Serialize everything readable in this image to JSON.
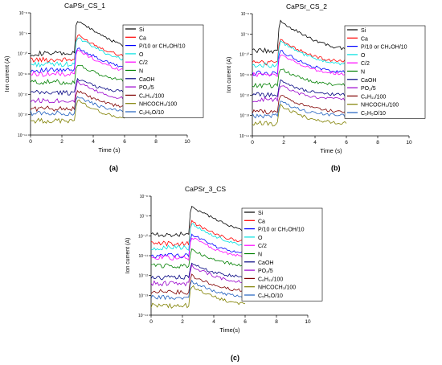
{
  "chart_data": [
    {
      "type": "line",
      "panel_label": "(a)",
      "title": "CaPSr_CS_1",
      "xlabel": "Time (s)",
      "ylabel": "Ion current (A)",
      "xlim": [
        0,
        10
      ],
      "ylim_exp": [
        -14,
        -8
      ],
      "x_ticks": [
        "0",
        "2",
        "4",
        "6",
        "8",
        "10"
      ],
      "y_ticks": [
        "10⁻¹⁴",
        "10⁻¹³",
        "10⁻¹²",
        "10⁻¹¹",
        "10⁻¹⁰",
        "10⁻⁹",
        "10⁻⁸"
      ],
      "legend_placement": "right",
      "peak_time": 3.0,
      "series": [
        {
          "name": "Si",
          "color": "#000000",
          "base": 1e-10,
          "peak": 4e-09
        },
        {
          "name": "Ca",
          "color": "#ff0000",
          "base": 5e-11,
          "peak": 8e-10
        },
        {
          "name": "P/10 or CH₂OH/10",
          "color": "#0000ff",
          "base": 1.5e-11,
          "peak": 2e-10
        },
        {
          "name": "O",
          "color": "#00e0e0",
          "base": 3e-11,
          "peak": 6e-10
        },
        {
          "name": "C/2",
          "color": "#ff00ff",
          "base": 1e-11,
          "peak": 1.5e-10
        },
        {
          "name": "N",
          "color": "#008000",
          "base": 4e-12,
          "peak": 3e-11
        },
        {
          "name": "CaOH",
          "color": "#000080",
          "base": 1.2e-12,
          "peak": 6e-12
        },
        {
          "name": "PO₂/5",
          "color": "#9900cc",
          "base": 5e-13,
          "peak": 4e-12
        },
        {
          "name": "C₆H₁₁/100",
          "color": "#800000",
          "base": 2e-13,
          "peak": 1.5e-12
        },
        {
          "name": "NHCOCH₃/100",
          "color": "#808000",
          "base": 5e-14,
          "peak": 5e-13
        },
        {
          "name": "C₅H₅O/10",
          "color": "#1f5fbf",
          "base": 1.2e-13,
          "peak": 8e-13
        }
      ]
    },
    {
      "type": "line",
      "panel_label": "(b)",
      "title": "CaPSr_CS_2",
      "xlabel": "Time (s)",
      "ylabel": "Ion current (A)",
      "xlim": [
        0,
        10
      ],
      "ylim_exp": [
        -14,
        -8
      ],
      "x_ticks": [
        "0",
        "2",
        "4",
        "6",
        "8",
        "10"
      ],
      "y_ticks": [
        "10⁻¹⁴",
        "10⁻¹³",
        "10⁻¹²",
        "10⁻¹¹",
        "10⁻¹⁰",
        "10⁻⁹",
        "10⁻⁸"
      ],
      "legend_placement": "right",
      "peak_time": 1.8,
      "series": [
        {
          "name": "Si",
          "color": "#000000",
          "base": 1.5e-10,
          "peak": 4e-09
        },
        {
          "name": "Ca",
          "color": "#ff0000",
          "base": 4e-11,
          "peak": 5e-10
        },
        {
          "name": "P/10 or CH₂OH/10",
          "color": "#0000ff",
          "base": 1.2e-11,
          "peak": 1.5e-10
        },
        {
          "name": "O",
          "color": "#00e0e0",
          "base": 3e-11,
          "peak": 4e-10
        },
        {
          "name": "C/2",
          "color": "#ff00ff",
          "base": 1e-11,
          "peak": 1e-10
        },
        {
          "name": "N",
          "color": "#008000",
          "base": 3e-12,
          "peak": 2e-11
        },
        {
          "name": "CaOH",
          "color": "#000080",
          "base": 1e-12,
          "peak": 5e-12
        },
        {
          "name": "PO₂/5",
          "color": "#9900cc",
          "base": 6e-13,
          "peak": 3e-12
        },
        {
          "name": "C₆H₁₁/100",
          "color": "#800000",
          "base": 1.5e-13,
          "peak": 1e-12
        },
        {
          "name": "NHCOCH₃/100",
          "color": "#808000",
          "base": 4e-14,
          "peak": 3e-13
        },
        {
          "name": "C₅H₅O/10",
          "color": "#1f5fbf",
          "base": 1e-13,
          "peak": 5e-13
        }
      ]
    },
    {
      "type": "line",
      "panel_label": "(c)",
      "title": "CaPSr_3_CS",
      "xlabel": "Time(s)",
      "ylabel": "Ion current (A)",
      "xlim": [
        0,
        10
      ],
      "ylim_exp": [
        -14,
        -8
      ],
      "x_ticks": [
        "0",
        "2",
        "4",
        "6",
        "8",
        "10"
      ],
      "y_ticks": [
        "10⁻¹⁴",
        "10⁻¹³",
        "10⁻¹²",
        "10⁻¹¹",
        "10⁻¹⁰",
        "10⁻⁹",
        "10⁻⁸"
      ],
      "legend_placement": "right",
      "peak_time": 2.6,
      "series": [
        {
          "name": "Si",
          "color": "#000000",
          "base": 1.2e-10,
          "peak": 3e-09
        },
        {
          "name": "Ca",
          "color": "#ff0000",
          "base": 4e-11,
          "peak": 5e-10
        },
        {
          "name": "P/10 or CH₂OH/10",
          "color": "#0000ff",
          "base": 1e-11,
          "peak": 1.2e-10
        },
        {
          "name": "O",
          "color": "#00e0e0",
          "base": 2.5e-11,
          "peak": 4e-10
        },
        {
          "name": "C/2",
          "color": "#ff00ff",
          "base": 8e-12,
          "peak": 8e-11
        },
        {
          "name": "N",
          "color": "#008000",
          "base": 3e-12,
          "peak": 2e-11
        },
        {
          "name": "CaOH",
          "color": "#000080",
          "base": 8e-13,
          "peak": 4e-12
        },
        {
          "name": "PO₂/5",
          "color": "#9900cc",
          "base": 4e-13,
          "peak": 3e-12
        },
        {
          "name": "C₆H₁₁/100",
          "color": "#800000",
          "base": 1.5e-13,
          "peak": 1e-12
        },
        {
          "name": "NHCOCH₃/100",
          "color": "#808000",
          "base": 3e-14,
          "peak": 3e-13
        },
        {
          "name": "C₅H₅O/10",
          "color": "#1f5fbf",
          "base": 8e-14,
          "peak": 5e-13
        }
      ]
    }
  ]
}
